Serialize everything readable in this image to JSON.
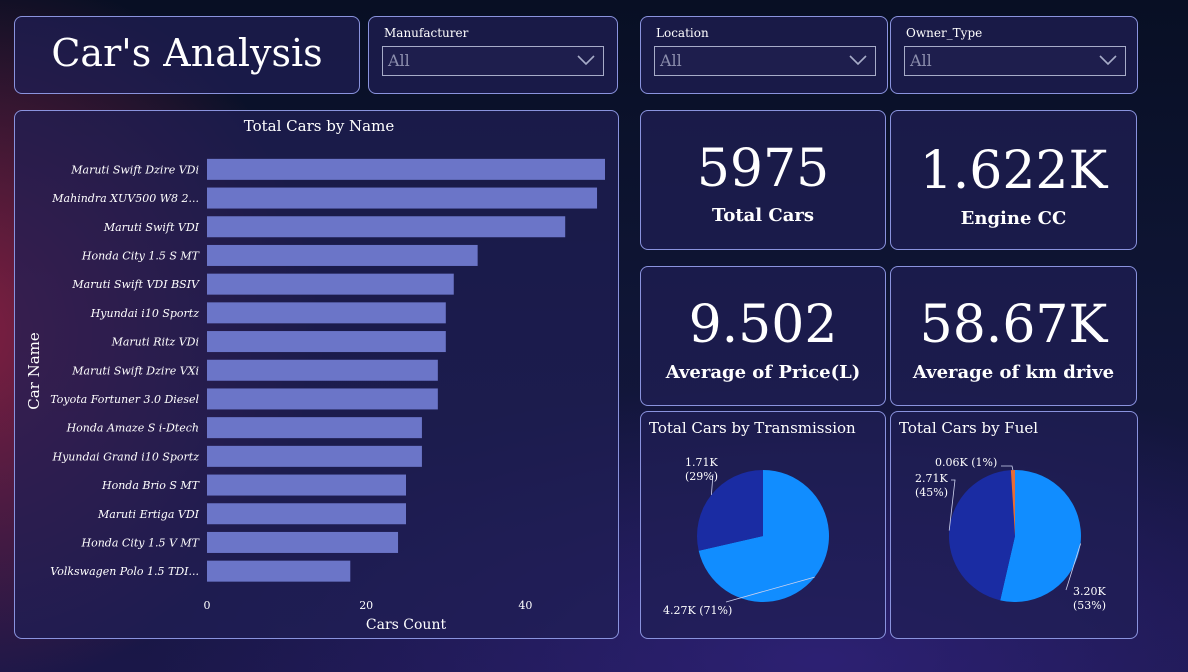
{
  "header": {
    "title": "Car's Analysis"
  },
  "slicers": [
    {
      "label": "Manufacturer",
      "value": "All"
    },
    {
      "label": "Location",
      "value": "All"
    },
    {
      "label": "Owner_Type",
      "value": "All"
    }
  ],
  "kpis": [
    {
      "value": "5975",
      "label": "Total Cars"
    },
    {
      "value": "1.622K",
      "label": "Engine CC"
    },
    {
      "value": "9.502",
      "label": "Average of Price(L)"
    },
    {
      "value": "58.67K",
      "label": "Average of km drive"
    }
  ],
  "colors": {
    "bar": "#6b75c8",
    "pie_dark": "#1a2ca3",
    "pie_light": "#118dff",
    "pie_small": "#e66c37"
  },
  "chart_data": [
    {
      "type": "bar",
      "orientation": "horizontal",
      "title": "Total Cars by Name",
      "xlabel": "Cars Count",
      "ylabel": "Car Name",
      "categories": [
        "Maruti Swift Dzire VDi",
        "Mahindra XUV500 W8 2...",
        "Maruti Swift VDI",
        "Honda City 1.5 S MT",
        "Maruti Swift VDI BSIV",
        "Hyundai i10 Sportz",
        "Maruti Ritz VDi",
        "Maruti Swift Dzire VXi",
        "Toyota Fortuner 3.0 Diesel",
        "Honda Amaze S i-Dtech",
        "Hyundai Grand i10 Sportz",
        "Honda Brio S MT",
        "Maruti Ertiga VDI",
        "Honda City 1.5 V MT",
        "Volkswagen Polo 1.5 TDI..."
      ],
      "values": [
        50,
        49,
        45,
        34,
        31,
        30,
        30,
        29,
        29,
        27,
        27,
        25,
        25,
        24,
        18
      ],
      "xticks": [
        0,
        20,
        40
      ],
      "xlim": [
        0,
        50
      ]
    },
    {
      "type": "pie",
      "title": "Total Cars by Transmission",
      "slices": [
        {
          "value": 4.27,
          "label": "4.27K (71%)",
          "pct": 71,
          "color": "#118dff"
        },
        {
          "value": 1.71,
          "label": "1.71K\n(29%)",
          "pct": 29,
          "color": "#1a2ca3"
        }
      ]
    },
    {
      "type": "pie",
      "title": "Total Cars by Fuel",
      "slices": [
        {
          "value": 3.2,
          "label": "3.20K\n(53%)",
          "pct": 53,
          "color": "#118dff"
        },
        {
          "value": 2.71,
          "label": "2.71K\n(45%)",
          "pct": 45,
          "color": "#1a2ca3"
        },
        {
          "value": 0.06,
          "label": "0.06K (1%)",
          "pct": 1,
          "color": "#e66c37"
        }
      ]
    }
  ]
}
